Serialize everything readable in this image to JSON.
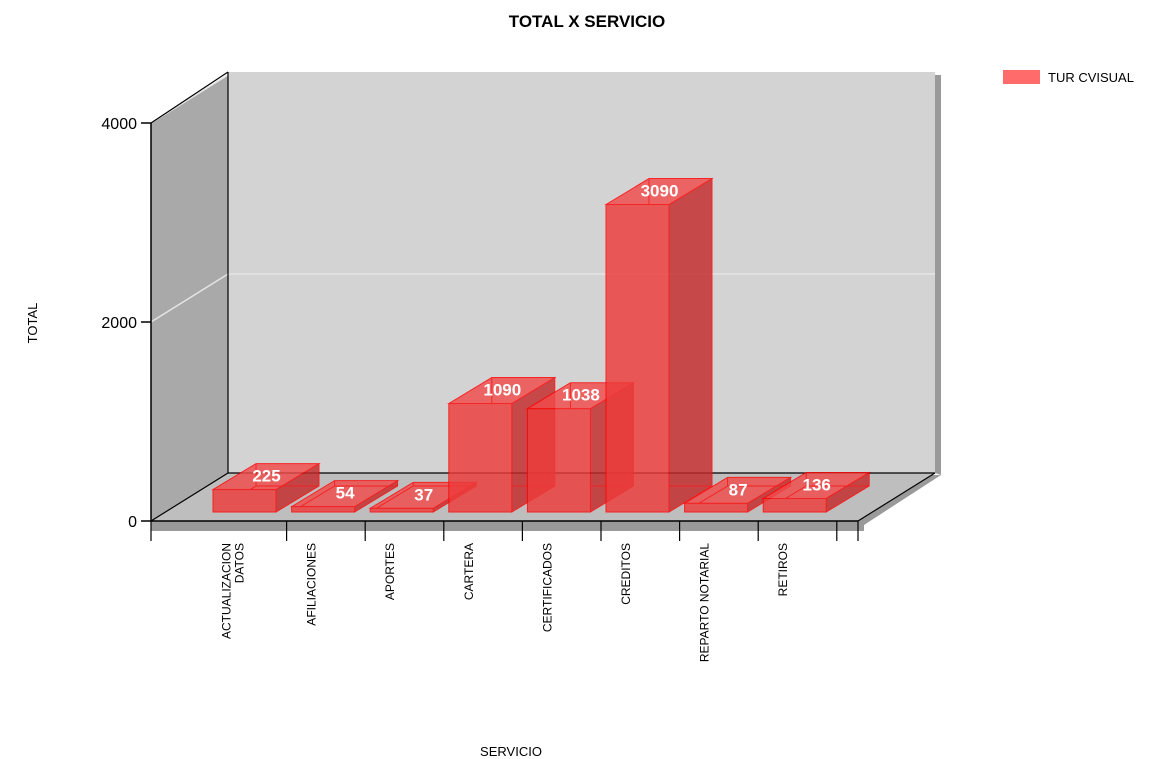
{
  "chart_data": {
    "type": "bar",
    "title": "TOTAL X SERVICIO",
    "xlabel": "SERVICIO",
    "ylabel": "TOTAL",
    "categories": [
      [
        "ACTUALIZACION",
        "DATOS"
      ],
      [
        "AFILIACIONES"
      ],
      [
        "APORTES"
      ],
      [
        "CARTERA"
      ],
      [
        "CERTIFICADOS"
      ],
      [
        "CREDITOS"
      ],
      [
        "REPARTO NOTARIAL"
      ],
      [
        "RETIROS"
      ]
    ],
    "series": [
      {
        "name": "TUR CVISUAL",
        "values": [
          225,
          54,
          37,
          1090,
          1038,
          3090,
          87,
          136
        ]
      }
    ],
    "yticks": [
      "0",
      "2000",
      "4000"
    ],
    "ylim": [
      0,
      4000
    ],
    "grid": true,
    "three_d": true,
    "legend_position": "top-right",
    "colors": {
      "bar_front": "#ee3b3b",
      "bar_side": "#c42a2a",
      "bar_top": "#f24b4b",
      "bar_stroke": "#ff0000",
      "legend_swatch": "#ff6b6b",
      "back_wall": "#d3d3d3",
      "side_wall": "#a9a9a9",
      "floor": "#bebebe"
    }
  }
}
